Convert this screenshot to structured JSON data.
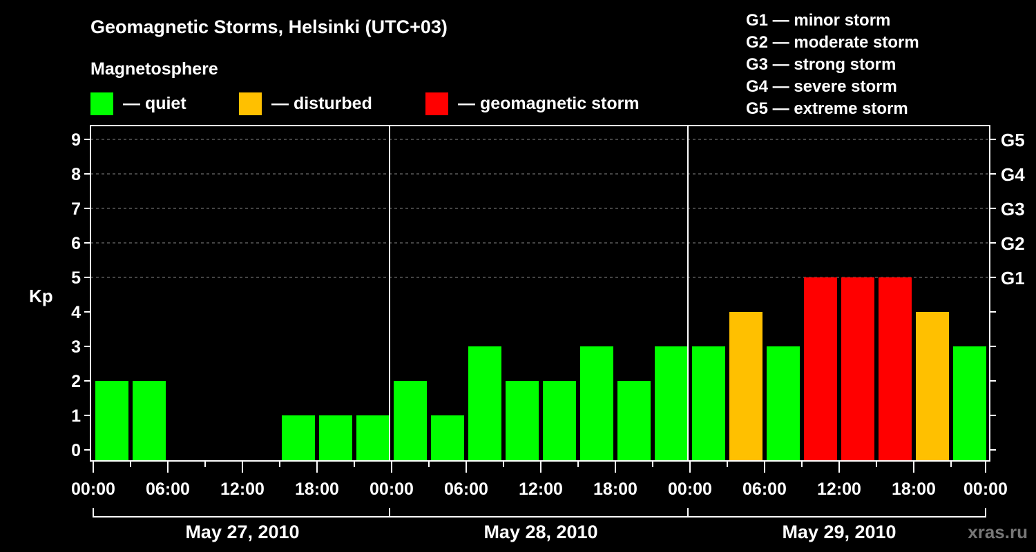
{
  "chart_data": {
    "type": "bar",
    "title": "Geomagnetic Storms, Helsinki (UTC+03)",
    "ylabel": "Kp",
    "ylim": [
      0,
      9
    ],
    "yticks": [
      "0",
      "1",
      "2",
      "3",
      "4",
      "5",
      "6",
      "7",
      "8",
      "9"
    ],
    "right_ticks": [
      {
        "kp": 5,
        "label": "G1"
      },
      {
        "kp": 6,
        "label": "G2"
      },
      {
        "kp": 7,
        "label": "G3"
      },
      {
        "kp": 8,
        "label": "G4"
      },
      {
        "kp": 9,
        "label": "G5"
      }
    ],
    "xtick_labels": [
      "00:00",
      "06:00",
      "12:00",
      "18:00",
      "00:00",
      "06:00",
      "12:00",
      "18:00",
      "00:00",
      "06:00",
      "12:00",
      "18:00",
      "00:00"
    ],
    "days": [
      "May 27, 2010",
      "May 28, 2010",
      "May 29, 2010"
    ],
    "interval_hours": 3,
    "values": [
      2,
      2,
      0,
      0,
      0,
      1,
      1,
      1,
      2,
      1,
      3,
      2,
      2,
      3,
      2,
      3,
      3,
      4,
      3,
      5,
      5,
      5,
      4,
      3
    ],
    "legend": {
      "heading": "Magnetosphere",
      "items": [
        {
          "label": "— quiet",
          "color": "#00ff00"
        },
        {
          "label": "— disturbed",
          "color": "#ffc000"
        },
        {
          "label": "— geomagnetic storm",
          "color": "#ff0000"
        }
      ]
    },
    "storm_scale": [
      "G1 — minor storm",
      "G2 — moderate storm",
      "G3 — strong storm",
      "G4 — severe storm",
      "G5 — extreme storm"
    ]
  },
  "watermark": "xras.ru"
}
